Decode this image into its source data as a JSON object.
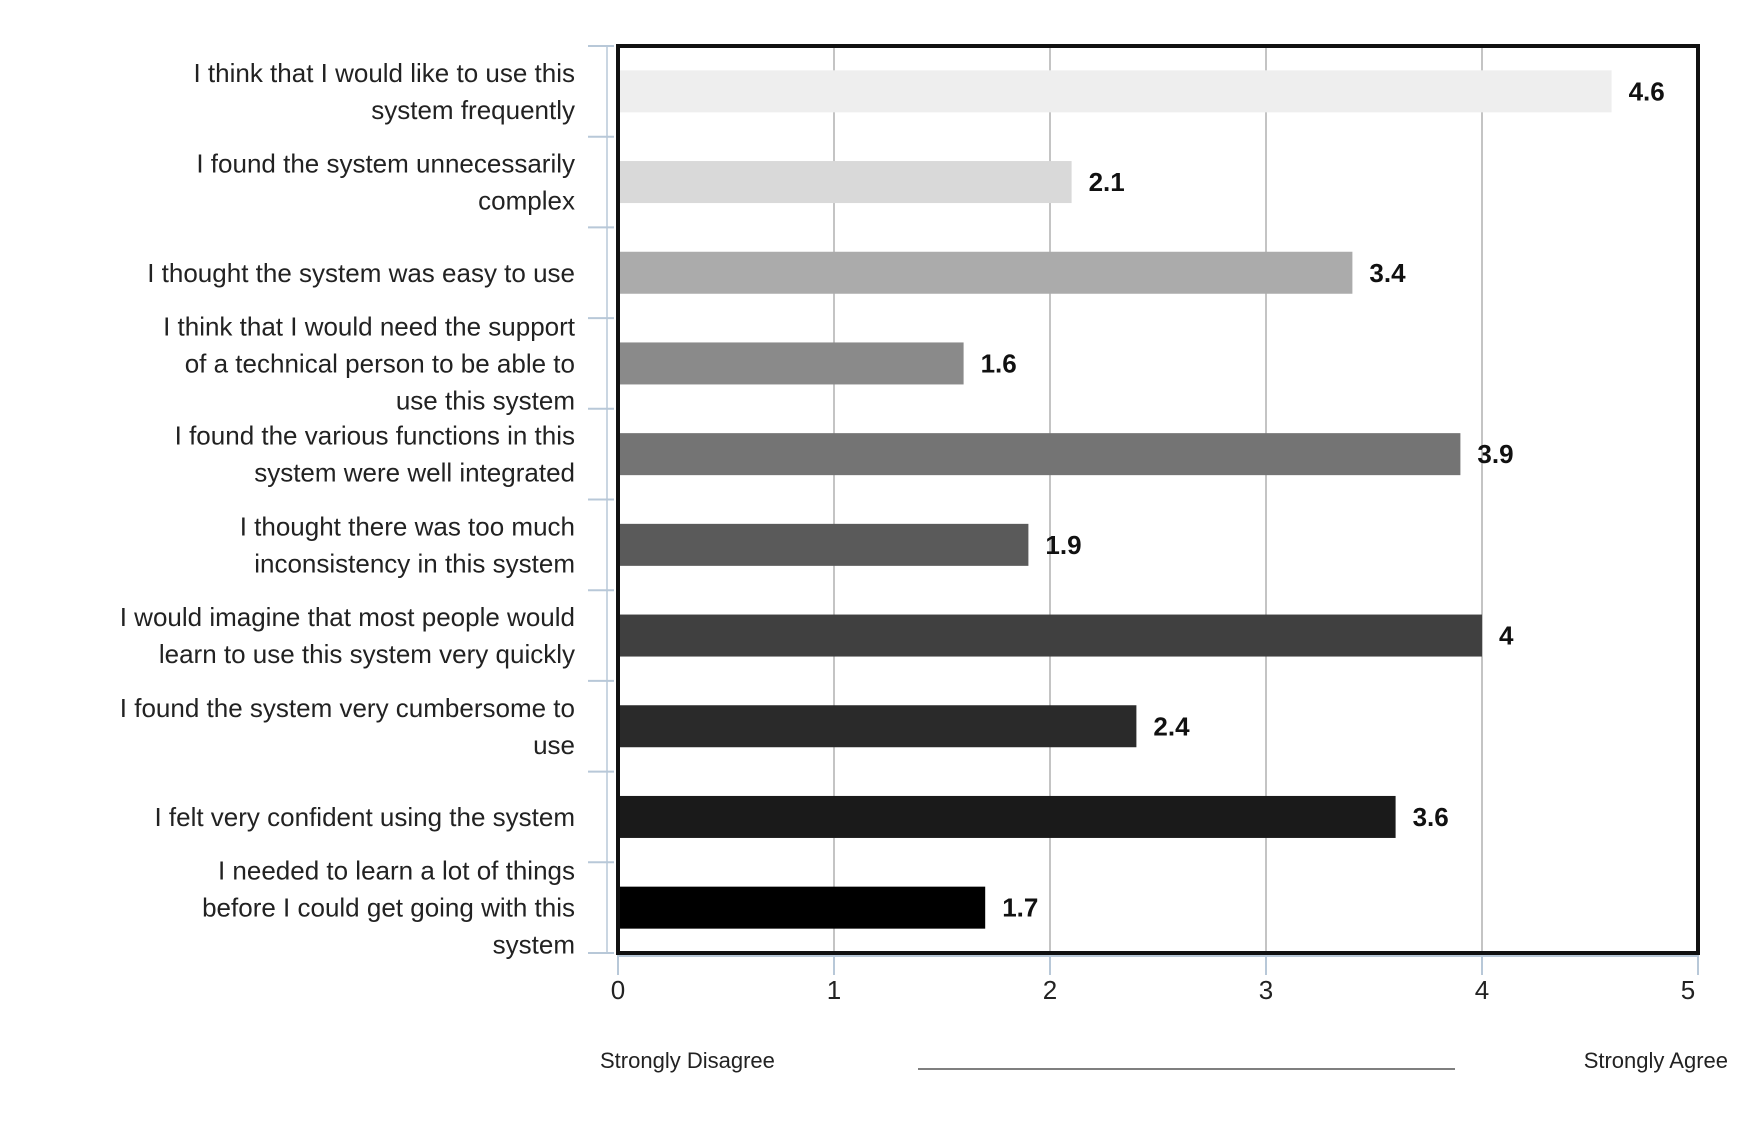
{
  "chart_data": {
    "type": "bar",
    "orientation": "horizontal",
    "categories": [
      "I think that I would like to use this system frequently",
      "I found the system unnecessarily complex",
      "I thought the system was easy to use",
      "I think that I would need the support of a technical person to be able to use this system",
      "I found the various functions in this system were well integrated",
      "I thought there was too much inconsistency in this system",
      "I would imagine that most people would learn to use this system very quickly",
      "I found the system very cumbersome to use",
      "I felt very confident using the system",
      "I needed to learn a lot of things before I could get going with this system"
    ],
    "values": [
      4.6,
      2.1,
      3.4,
      1.6,
      3.9,
      1.9,
      4,
      2.4,
      3.6,
      1.7
    ],
    "value_labels": [
      "4.6",
      "2.1",
      "3.4",
      "1.6",
      "3.9",
      "1.9",
      "4",
      "2.4",
      "3.6",
      "1.7"
    ],
    "bar_colors": [
      "#eeeeee",
      "#d9d9d9",
      "#ababab",
      "#8a8a8a",
      "#747474",
      "#5a5a5a",
      "#404040",
      "#2a2a2a",
      "#1a1a1a",
      "#000000"
    ],
    "xlim": [
      0,
      5
    ],
    "xticks": [
      "0",
      "1",
      "2",
      "3",
      "4",
      "5"
    ],
    "grid": true,
    "scale_left_label": "Strongly Disagree",
    "scale_right_label": "Strongly Agree"
  },
  "colors": {
    "frame": "#111111",
    "grid": "#c4c4c4",
    "axis": "#b8c8d8"
  }
}
